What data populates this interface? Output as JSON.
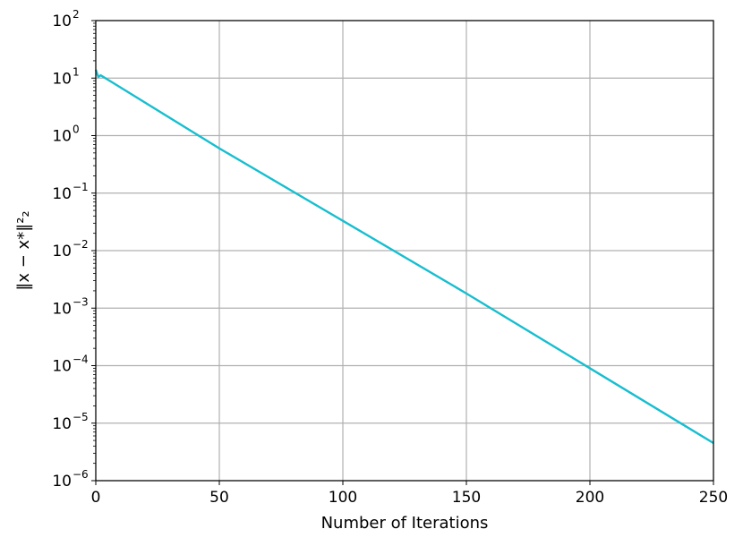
{
  "chart_data": {
    "type": "line",
    "xlabel": "Number of Iterations",
    "ylabel": "‖x − x*‖²₂",
    "xlim": [
      0,
      250
    ],
    "ylim": [
      1e-06,
      100
    ],
    "yscale": "log",
    "grid": true,
    "xticks": [
      0,
      50,
      100,
      150,
      200,
      250
    ],
    "xtick_labels": [
      "0",
      "50",
      "100",
      "150",
      "200",
      "250"
    ],
    "yticks": [
      1e-06,
      1e-05,
      0.0001,
      0.001,
      0.01,
      0.1,
      1,
      10,
      100
    ],
    "ytick_labels": [
      {
        "base": "10",
        "exp": "−6"
      },
      {
        "base": "10",
        "exp": "−5"
      },
      {
        "base": "10",
        "exp": "−4"
      },
      {
        "base": "10",
        "exp": "−3"
      },
      {
        "base": "10",
        "exp": "−2"
      },
      {
        "base": "10",
        "exp": "−1"
      },
      {
        "base": "10",
        "exp": "0"
      },
      {
        "base": "10",
        "exp": "1"
      },
      {
        "base": "10",
        "exp": "2"
      }
    ],
    "series": [
      {
        "color": "#17becf",
        "x": [
          0,
          1,
          2,
          50,
          100,
          150,
          200,
          250
        ],
        "y": [
          14,
          10.5,
          11.2,
          0.6,
          0.033,
          0.0018,
          9e-05,
          4.5e-06
        ]
      }
    ]
  }
}
